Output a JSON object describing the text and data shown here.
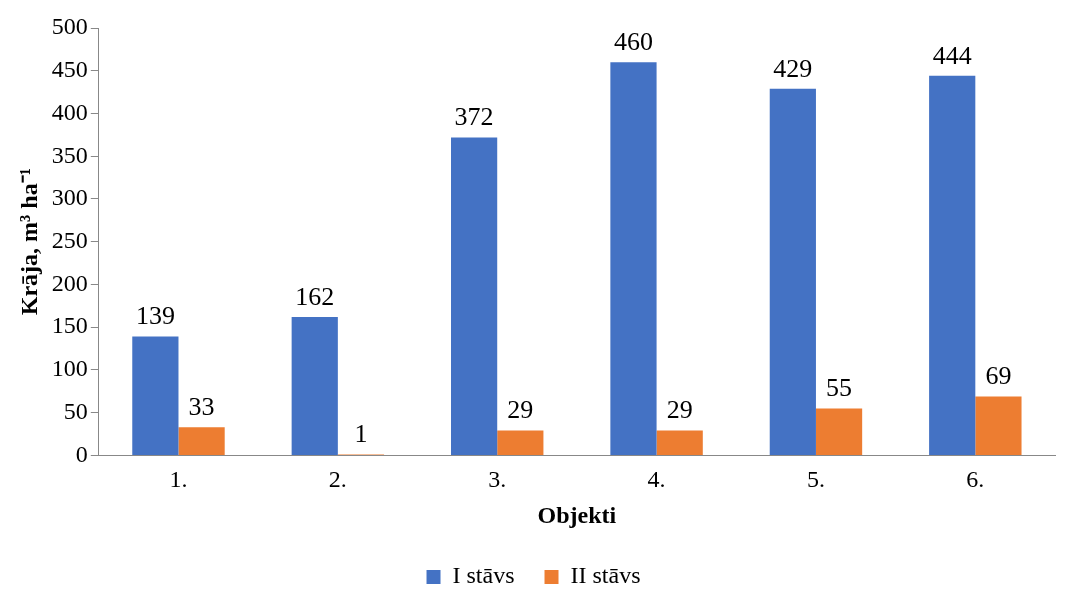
{
  "chart_data": {
    "type": "bar",
    "xlabel": "Objekti",
    "ylabel": "Krāja, m³ ha⁻¹",
    "categories": [
      "1.",
      "2.",
      "3.",
      "4.",
      "5.",
      "6."
    ],
    "series": [
      {
        "name": "I stāvs",
        "color": "#4472c4",
        "values": [
          139,
          162,
          372,
          460,
          429,
          444
        ]
      },
      {
        "name": "II stāvs",
        "color": "#ed7d31",
        "values": [
          33,
          1,
          29,
          29,
          55,
          69
        ]
      }
    ],
    "ylim": [
      0,
      500
    ],
    "yticks": [
      0,
      50,
      100,
      150,
      200,
      250,
      300,
      350,
      400,
      450,
      500
    ],
    "grid": false,
    "legend": "bottom",
    "data_labels": true
  }
}
